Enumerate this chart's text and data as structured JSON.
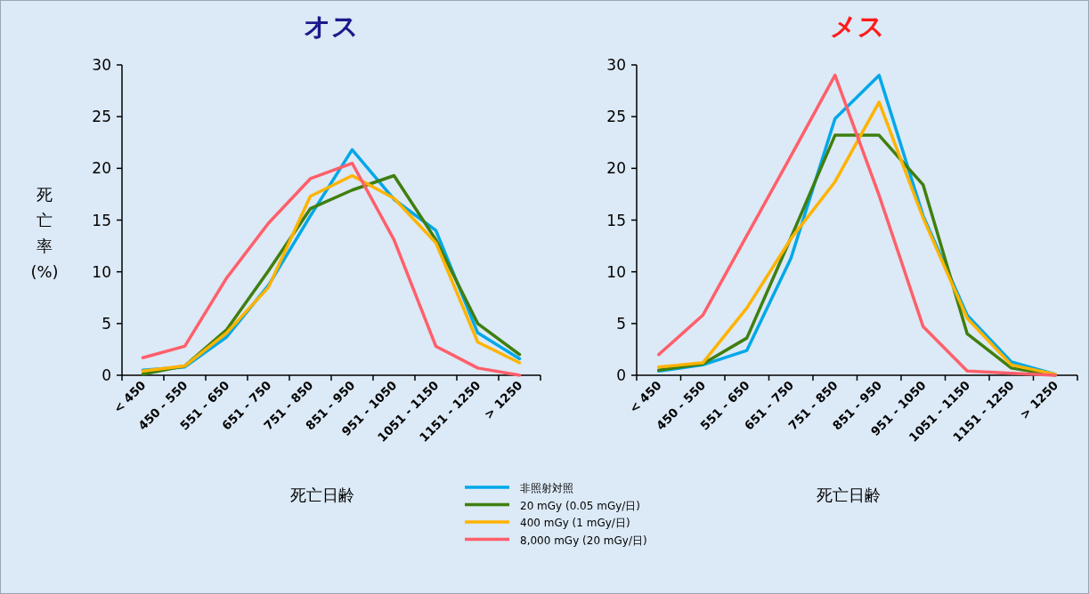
{
  "chart_data": [
    {
      "type": "line",
      "title": "オス",
      "ylabel": "死亡率(%)",
      "xlabel": "死亡日齢",
      "categories": [
        "< 450",
        "450 - 550",
        "551 - 650",
        "651 - 750",
        "751 - 850",
        "851 - 950",
        "951 - 1050",
        "1051 - 1150",
        "1151 - 1250",
        "> 1250"
      ],
      "ylim": [
        0,
        30
      ],
      "yticks": [
        0,
        5,
        10,
        15,
        20,
        25,
        30
      ],
      "grid": false,
      "legend": "bottom",
      "marker": "none",
      "line_style": "solid",
      "series": [
        {
          "name": "非照射対照",
          "color": "#00a8e8",
          "values": [
            0.5,
            0.8,
            3.7,
            8.7,
            15.4,
            21.8,
            17.0,
            14.0,
            4.1,
            1.6
          ]
        },
        {
          "name": "20 mGy (0.05 mGy/日)",
          "color": "#3f7f0f",
          "values": [
            0.1,
            0.9,
            4.4,
            10.1,
            16.1,
            17.9,
            19.3,
            13.1,
            5.0,
            2.0
          ]
        },
        {
          "name": "400 mGy (1 mGy/日)",
          "color": "#ffb300",
          "values": [
            0.4,
            0.9,
            4.1,
            8.5,
            17.3,
            19.3,
            17.1,
            12.8,
            3.2,
            1.2
          ]
        },
        {
          "name": "8,000 mGy (20 mGy/日)",
          "color": "#ff5f6a",
          "values": [
            1.7,
            2.8,
            9.4,
            14.7,
            19.0,
            20.5,
            13.1,
            2.8,
            0.7,
            0
          ]
        }
      ]
    },
    {
      "type": "line",
      "title": "メス",
      "xlabel": "死亡日齢",
      "categories": [
        "< 450",
        "450 - 550",
        "551 - 650",
        "651 - 750",
        "751 - 850",
        "851 - 950",
        "951 - 1050",
        "1051 - 1150",
        "1151 - 1250",
        "> 1250"
      ],
      "ylim": [
        0,
        30
      ],
      "yticks": [
        0,
        5,
        10,
        15,
        20,
        25,
        30
      ],
      "grid": false,
      "marker": "none",
      "line_style": "solid",
      "series": [
        {
          "color": "#00a8e8",
          "values": [
            0.4,
            1.0,
            2.4,
            11.3,
            24.8,
            29.0,
            15.4,
            5.8,
            1.3,
            0.1
          ]
        },
        {
          "color": "#3f7f0f",
          "values": [
            0.5,
            1.1,
            3.6,
            13.3,
            23.2,
            23.2,
            18.4,
            4.0,
            0.7,
            0
          ]
        },
        {
          "color": "#ffb300",
          "values": [
            0.8,
            1.2,
            6.5,
            13.2,
            18.7,
            26.4,
            15.2,
            5.5,
            1.0,
            0.1
          ]
        },
        {
          "color": "#ff5f6a",
          "values": [
            2.0,
            5.8,
            13.5,
            21.2,
            29.0,
            17.4,
            4.7,
            0.4,
            0.2,
            0
          ]
        }
      ]
    }
  ]
}
